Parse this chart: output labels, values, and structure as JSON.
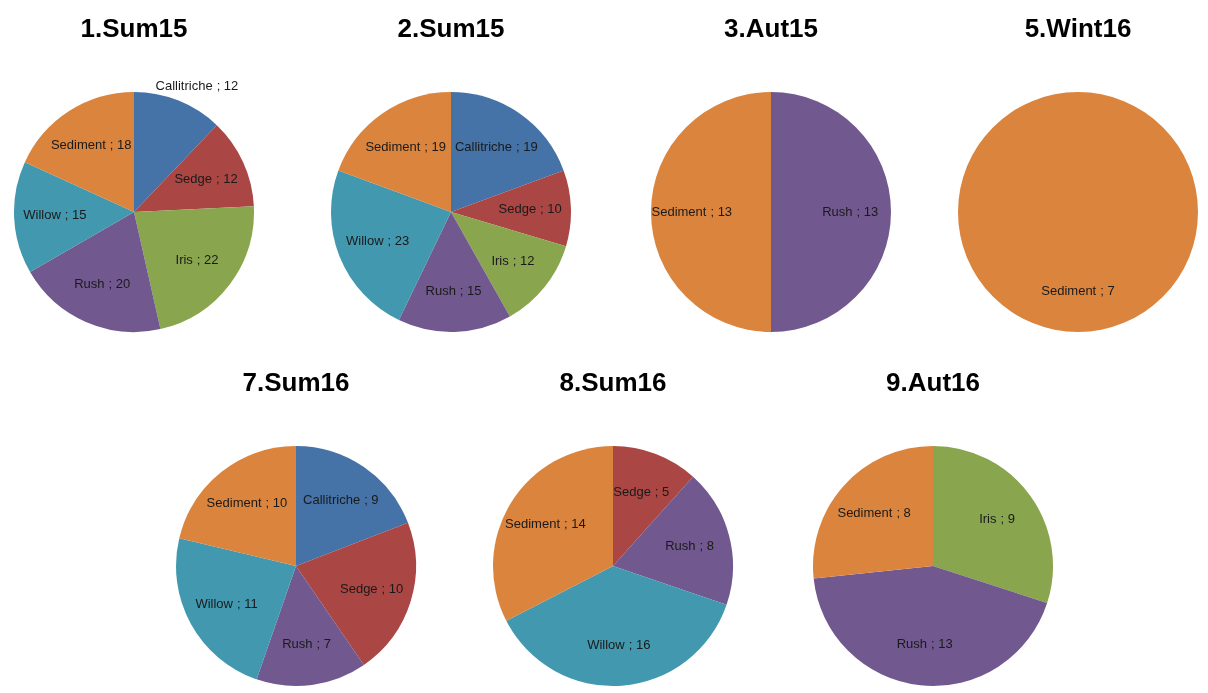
{
  "chart_data": [
    {
      "type": "pie",
      "title": "1.Sum15",
      "categories": [
        "Callitriche",
        "Sedge",
        "Iris",
        "Rush",
        "Willow",
        "Sediment"
      ],
      "values": [
        12,
        12,
        22,
        20,
        15,
        18
      ],
      "colors": [
        "#4572a7",
        "#aa4643",
        "#89a54e",
        "#71588f",
        "#4198af",
        "#db843d"
      ],
      "value_labels": [
        "; 12",
        "; 12",
        "; 22",
        "; 20",
        "; 15",
        "; 18"
      ]
    },
    {
      "type": "pie",
      "title": "2.Sum15",
      "categories": [
        "Callitriche",
        "Sedge",
        "Iris",
        "Rush",
        "Willow",
        "Sediment"
      ],
      "values": [
        19,
        10,
        12,
        15,
        23,
        19
      ],
      "colors": [
        "#4572a7",
        "#aa4643",
        "#89a54e",
        "#71588f",
        "#4198af",
        "#db843d"
      ],
      "value_labels": [
        "; 19",
        "; 10",
        "; 12",
        "; 15",
        "; 23",
        "; 19"
      ]
    },
    {
      "type": "pie",
      "title": "3.Aut15",
      "categories": [
        "Rush",
        "Sediment"
      ],
      "values": [
        13,
        13
      ],
      "colors": [
        "#71588f",
        "#db843d"
      ],
      "value_labels": [
        "; 13",
        "; 13"
      ]
    },
    {
      "type": "pie",
      "title": "5.Wint16",
      "categories": [
        "Sediment"
      ],
      "values": [
        7
      ],
      "colors": [
        "#db843d"
      ],
      "value_labels": [
        "; 7"
      ]
    },
    {
      "type": "pie",
      "title": "7.Sum16",
      "categories": [
        "Callitriche",
        "Sedge",
        "Rush",
        "Willow",
        "Sediment"
      ],
      "values": [
        9,
        10,
        7,
        11,
        10
      ],
      "colors": [
        "#4572a7",
        "#aa4643",
        "#71588f",
        "#4198af",
        "#db843d"
      ],
      "value_labels": [
        "; 9",
        "; 10",
        "; 7",
        "; 11",
        "; 10"
      ]
    },
    {
      "type": "pie",
      "title": "8.Sum16",
      "categories": [
        "Sedge",
        "Rush",
        "Willow",
        "Sediment"
      ],
      "values": [
        5,
        8,
        16,
        14
      ],
      "colors": [
        "#aa4643",
        "#71588f",
        "#4198af",
        "#db843d"
      ],
      "value_labels": [
        "; 5",
        "; 8",
        "; 16",
        "; 14"
      ]
    },
    {
      "type": "pie",
      "title": "9.Aut16",
      "categories": [
        "Iris",
        "Rush",
        "Sediment"
      ],
      "values": [
        9,
        13,
        8
      ],
      "colors": [
        "#89a54e",
        "#71588f",
        "#db843d"
      ],
      "value_labels": [
        "; 9",
        "; 13",
        "; 8"
      ]
    }
  ]
}
